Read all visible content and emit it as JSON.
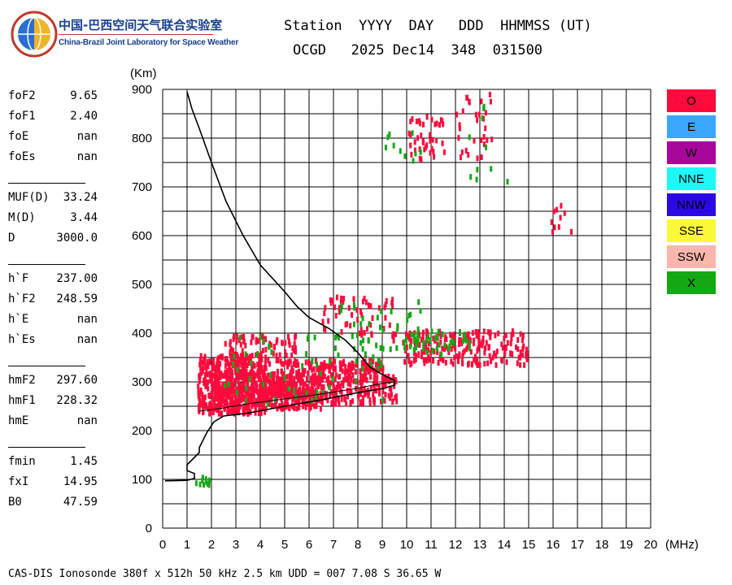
{
  "header": {
    "org_cn": "中国-巴西空间天气联合实验室",
    "org_en": "China-Brazil Joint Laboratory for Space Weather",
    "line1": "Station  YYYY  DAY   DDD  HHMMSS (UT)",
    "line2": "OCGD   2025 Dec14  348  031500"
  },
  "params": [
    {
      "label": "foF2",
      "value": "9.65"
    },
    {
      "label": "foF1",
      "value": "2.40"
    },
    {
      "label": "foE",
      "value": "nan"
    },
    {
      "label": "foEs",
      "value": "nan"
    },
    {
      "label": "MUF(D)",
      "value": "33.24"
    },
    {
      "label": "M(D)",
      "value": "3.44"
    },
    {
      "label": "D",
      "value": "3000.0"
    },
    {
      "label": "h`F",
      "value": "237.00"
    },
    {
      "label": "h`F2",
      "value": "248.59"
    },
    {
      "label": "h`E",
      "value": "nan"
    },
    {
      "label": "h`Es",
      "value": "nan"
    },
    {
      "label": "hmF2",
      "value": "297.60"
    },
    {
      "label": "hmF1",
      "value": "228.32"
    },
    {
      "label": "hmE",
      "value": "nan"
    },
    {
      "label": "fmin",
      "value": "1.45"
    },
    {
      "label": "fxI",
      "value": "14.95"
    },
    {
      "label": "B0",
      "value": "47.59"
    }
  ],
  "legend": [
    {
      "label": "O",
      "color": "#ff0a3c"
    },
    {
      "label": "E",
      "color": "#3aa6ff"
    },
    {
      "label": "W",
      "color": "#a7079a"
    },
    {
      "label": "NNE",
      "color": "#1ef9f7"
    },
    {
      "label": "NNW",
      "color": "#2a09e6"
    },
    {
      "label": "SSE",
      "color": "#f9f93a"
    },
    {
      "label": "SSW",
      "color": "#f8b6ac"
    },
    {
      "label": "X",
      "color": "#14a814"
    }
  ],
  "footer": "CAS-DIS Ionosonde 380f x 512h 50 kHz 2.5 km UDD = 007 7.08 S 36.65 W",
  "chart_data": {
    "type": "scatter",
    "xlabel": "(MHz)",
    "ylabel": "(Km)",
    "xlim": [
      0,
      20
    ],
    "ylim": [
      0,
      900
    ],
    "x_ticks": [
      0,
      1,
      2,
      3,
      4,
      5,
      6,
      7,
      8,
      9,
      10,
      11,
      12,
      13,
      14,
      15,
      16,
      17,
      18,
      19,
      20
    ],
    "y_ticks": [
      0,
      100,
      200,
      300,
      400,
      500,
      600,
      700,
      800,
      900
    ],
    "grid": true,
    "series": [
      {
        "name": "O",
        "color": "#ff0a3c",
        "regions": [
          {
            "x": [
              1.4,
              4.2
            ],
            "y": [
              240,
              360
            ],
            "n": 450
          },
          {
            "x": [
              2.0,
              6.5
            ],
            "y": [
              250,
              330
            ],
            "n": 350
          },
          {
            "x": [
              4.0,
              9.6
            ],
            "y": [
              260,
              320
            ],
            "n": 320
          },
          {
            "x": [
              2.5,
              5.5
            ],
            "y": [
              340,
              400
            ],
            "n": 90
          },
          {
            "x": [
              5.0,
              9.0
            ],
            "y": [
              325,
              350
            ],
            "n": 120
          },
          {
            "x": [
              6.5,
              9.5
            ],
            "y": [
              390,
              480
            ],
            "n": 60
          },
          {
            "x": [
              9.8,
              15.0
            ],
            "y": [
              340,
              410
            ],
            "n": 220
          },
          {
            "x": [
              10.0,
              11.5
            ],
            "y": [
              760,
              850
            ],
            "n": 40
          },
          {
            "x": [
              12.0,
              13.5
            ],
            "y": [
              760,
              900
            ],
            "n": 30
          },
          {
            "x": [
              15.8,
              16.8
            ],
            "y": [
              605,
              670
            ],
            "n": 10
          }
        ]
      },
      {
        "name": "X",
        "color": "#14a814",
        "regions": [
          {
            "x": [
              1.2,
              1.9
            ],
            "y": [
              92,
              110
            ],
            "n": 10
          },
          {
            "x": [
              2.5,
              9.0
            ],
            "y": [
              260,
              400
            ],
            "n": 60
          },
          {
            "x": [
              6.8,
              10.8
            ],
            "y": [
              370,
              470
            ],
            "n": 40
          },
          {
            "x": [
              9.8,
              12.6
            ],
            "y": [
              360,
              410
            ],
            "n": 35
          },
          {
            "x": [
              9.0,
              10.6
            ],
            "y": [
              745,
              820
            ],
            "n": 10
          },
          {
            "x": [
              12.5,
              14.2
            ],
            "y": [
              710,
              880
            ],
            "n": 10
          }
        ]
      }
    ],
    "trace_points": [
      [
        0.1,
        97
      ],
      [
        1.0,
        98
      ],
      [
        1.3,
        102
      ],
      [
        1.3,
        112
      ],
      [
        1.0,
        118
      ],
      [
        1.0,
        130
      ],
      [
        1.5,
        155
      ],
      [
        1.5,
        165
      ],
      [
        1.8,
        195
      ],
      [
        2.1,
        218
      ],
      [
        2.5,
        230
      ],
      [
        3.5,
        236
      ],
      [
        5.0,
        250
      ],
      [
        6.5,
        263
      ],
      [
        8.0,
        278
      ],
      [
        9.0,
        286
      ],
      [
        9.5,
        293
      ],
      [
        9.5,
        303
      ],
      [
        9.0,
        315
      ],
      [
        8.5,
        330
      ],
      [
        8.0,
        360
      ],
      [
        7.5,
        385
      ],
      [
        6.8,
        410
      ],
      [
        6.0,
        432
      ],
      [
        5.5,
        455
      ],
      [
        5.0,
        485
      ],
      [
        4.0,
        540
      ],
      [
        3.3,
        600
      ],
      [
        2.6,
        670
      ],
      [
        2.0,
        750
      ],
      [
        1.5,
        820
      ],
      [
        1.2,
        860
      ],
      [
        1.0,
        895
      ]
    ],
    "inner_trace_points": [
      [
        1.5,
        240
      ],
      [
        2.3,
        245
      ],
      [
        3.5,
        255
      ],
      [
        5.0,
        265
      ],
      [
        6.5,
        275
      ],
      [
        8.0,
        287
      ],
      [
        9.0,
        297
      ],
      [
        9.5,
        300
      ]
    ]
  }
}
